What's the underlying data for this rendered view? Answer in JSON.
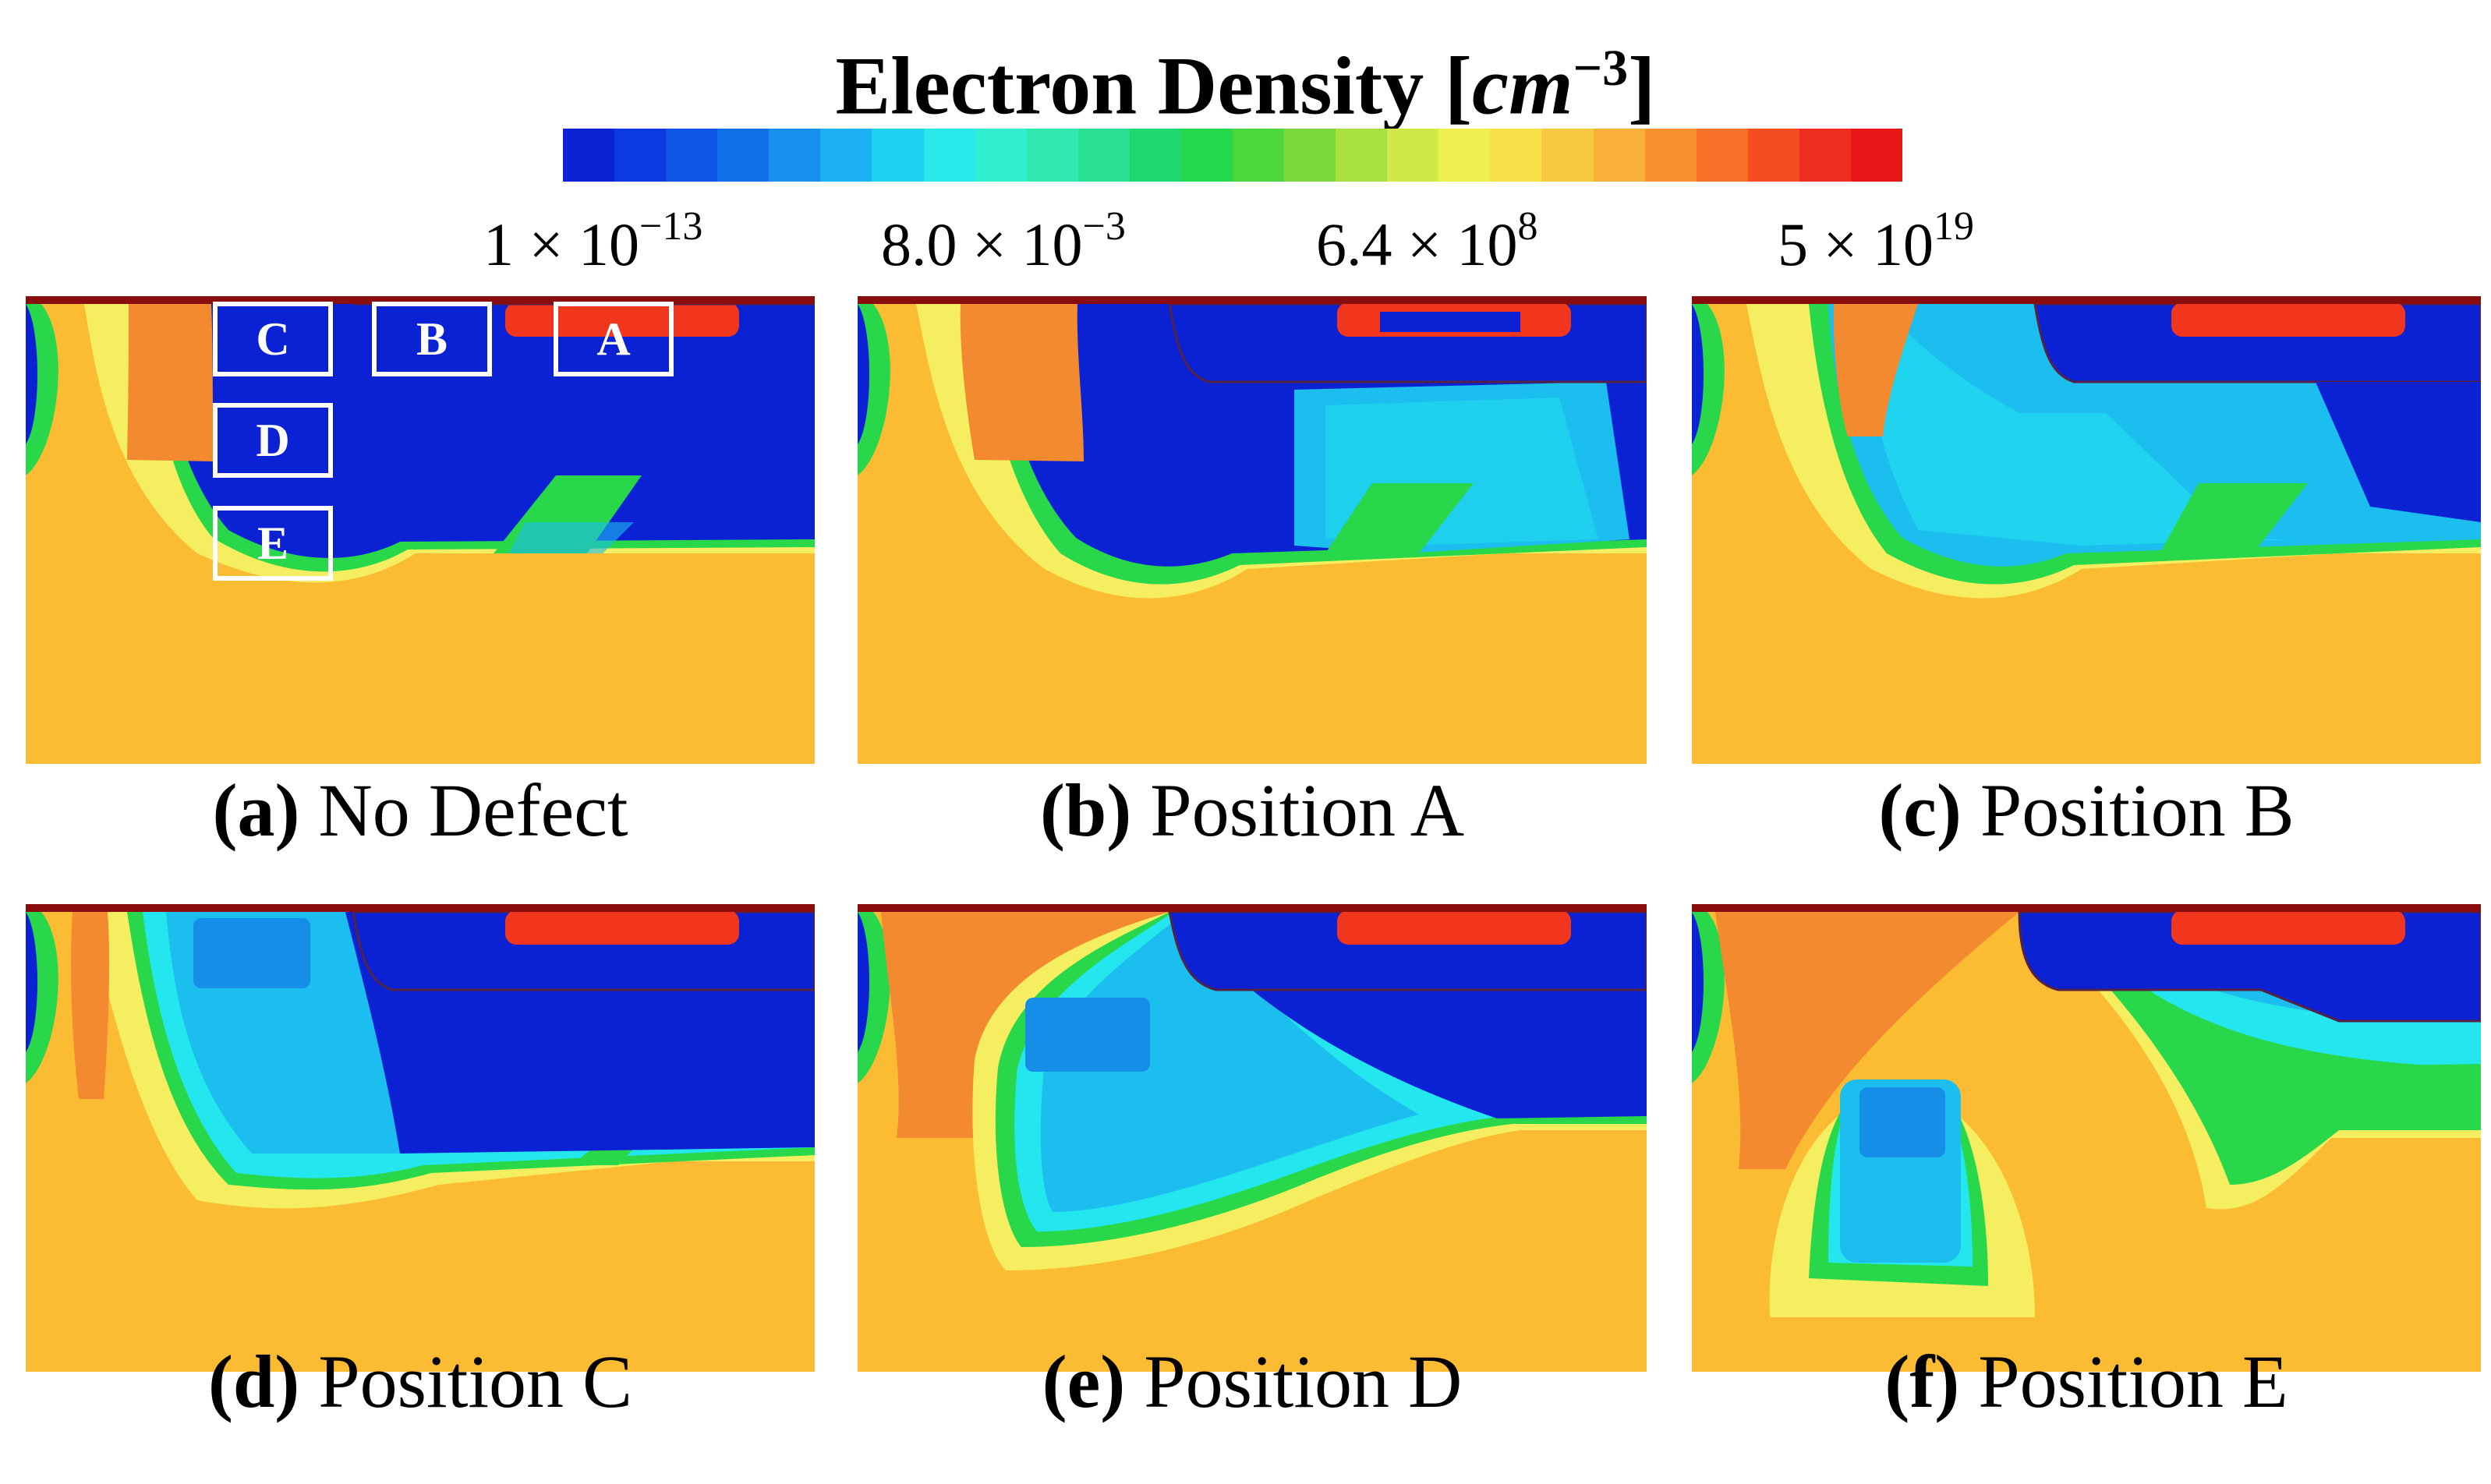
{
  "title": {
    "label": "Electron Density",
    "unit_open": "[",
    "unit": "cm",
    "unit_exp": "−3",
    "unit_close": "]"
  },
  "colorbar": {
    "colors": [
      "#0a22d4",
      "#0b3ae0",
      "#0d55e6",
      "#0f70ea",
      "#1590ee",
      "#1cb0f2",
      "#20d0f2",
      "#28e8ea",
      "#30eed0",
      "#30e8b0",
      "#28e090",
      "#1fd870",
      "#25d84c",
      "#4ad83a",
      "#7ad83a",
      "#a8e040",
      "#d0e848",
      "#eef050",
      "#f8e048",
      "#f8c840",
      "#f8b038",
      "#f89030",
      "#f87028",
      "#f44d22",
      "#ee2d1e",
      "#e81818"
    ],
    "ticks": [
      {
        "mant": "1 × 10",
        "exp": "−13"
      },
      {
        "mant": "8.0 × 10",
        "exp": "−3"
      },
      {
        "mant": "6.4 × 10",
        "exp": "8"
      },
      {
        "mant": "5 × 10",
        "exp": "19"
      }
    ]
  },
  "colors": {
    "orange_bg": "#fbbb33",
    "orange_dark": "#f38a30",
    "yellow": "#f4ee60",
    "green": "#28d84a",
    "cyan": "#24e6ee",
    "light_blue": "#1cbdef",
    "mid_blue": "#158ee8",
    "deep_blue": "#0a22d4",
    "red": "#f2361e",
    "contact": "#8a0d0d"
  },
  "markers": {
    "A": "A",
    "B": "B",
    "C": "C",
    "D": "D",
    "E": "E"
  },
  "panels": [
    {
      "id": "a",
      "letter": "(a)",
      "label": "No Defect"
    },
    {
      "id": "b",
      "letter": "(b)",
      "label": "Position A"
    },
    {
      "id": "c",
      "letter": "(c)",
      "label": "Position B"
    },
    {
      "id": "d",
      "letter": "(d)",
      "label": "Position C"
    },
    {
      "id": "e",
      "letter": "(e)",
      "label": "Position D"
    },
    {
      "id": "f",
      "letter": "(f)",
      "label": "Position E"
    }
  ]
}
